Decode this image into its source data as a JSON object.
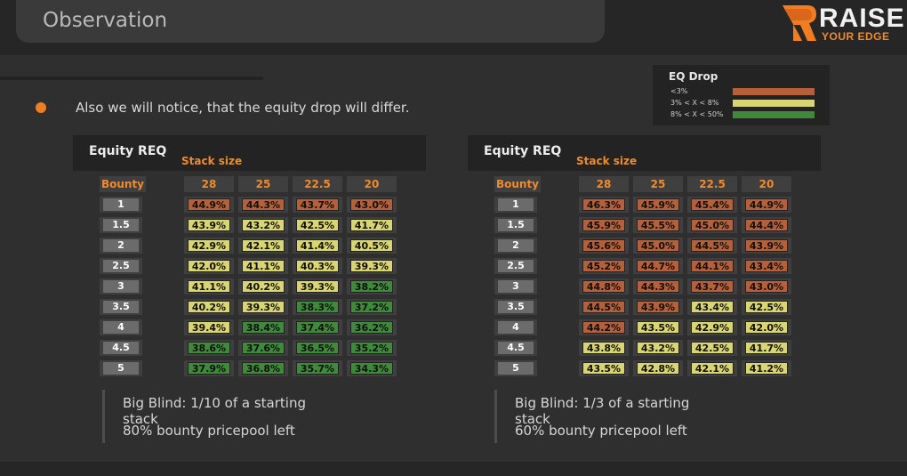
{
  "header": {
    "title": "Observation",
    "logo_main": "RAISE",
    "logo_sub": "YOUR EDGE"
  },
  "bullet_text": "Also we will notice, that the equity drop will differ.",
  "legend": {
    "title": "EQ Drop",
    "rows": [
      {
        "label": "<3%",
        "color": "#b5603a"
      },
      {
        "label": "3% < X < 8%",
        "color": "#d9d572"
      },
      {
        "label": "8% < X < 50%",
        "color": "#3e8a3a"
      }
    ]
  },
  "colors": {
    "red": "#b5603a",
    "yellow": "#d9d572",
    "green": "#3e8a3a",
    "accent": "#f08a2c"
  },
  "panels": [
    {
      "heading": "Equity REQ",
      "stack_label": "Stack size",
      "bounty_header": "Bounty",
      "stack_sizes": [
        "28",
        "25",
        "22.5",
        "20"
      ],
      "rows": [
        {
          "bounty": "1",
          "values": [
            "44.9%",
            "44.3%",
            "43.7%",
            "43.0%"
          ],
          "colors": [
            "r",
            "r",
            "r",
            "r"
          ]
        },
        {
          "bounty": "1.5",
          "values": [
            "43.9%",
            "43.2%",
            "42.5%",
            "41.7%"
          ],
          "colors": [
            "y",
            "y",
            "y",
            "y"
          ]
        },
        {
          "bounty": "2",
          "values": [
            "42.9%",
            "42.1%",
            "41.4%",
            "40.5%"
          ],
          "colors": [
            "y",
            "y",
            "y",
            "y"
          ]
        },
        {
          "bounty": "2.5",
          "values": [
            "42.0%",
            "41.1%",
            "40.3%",
            "39.3%"
          ],
          "colors": [
            "y",
            "y",
            "y",
            "y"
          ]
        },
        {
          "bounty": "3",
          "values": [
            "41.1%",
            "40.2%",
            "39.3%",
            "38.2%"
          ],
          "colors": [
            "y",
            "y",
            "y",
            "g"
          ]
        },
        {
          "bounty": "3.5",
          "values": [
            "40.2%",
            "39.3%",
            "38.3%",
            "37.2%"
          ],
          "colors": [
            "y",
            "y",
            "g",
            "g"
          ]
        },
        {
          "bounty": "4",
          "values": [
            "39.4%",
            "38.4%",
            "37.4%",
            "36.2%"
          ],
          "colors": [
            "y",
            "g",
            "g",
            "g"
          ]
        },
        {
          "bounty": "4.5",
          "values": [
            "38.6%",
            "37.6%",
            "36.5%",
            "35.2%"
          ],
          "colors": [
            "g",
            "g",
            "g",
            "g"
          ]
        },
        {
          "bounty": "5",
          "values": [
            "37.9%",
            "36.8%",
            "35.7%",
            "34.3%"
          ],
          "colors": [
            "g",
            "g",
            "g",
            "g"
          ]
        }
      ],
      "note_line1": "Big Blind: 1/10 of a starting stack",
      "note_line2": "80% bounty pricepool left"
    },
    {
      "heading": "Equity REQ",
      "stack_label": "Stack size",
      "bounty_header": "Bounty",
      "stack_sizes": [
        "28",
        "25",
        "22.5",
        "20"
      ],
      "rows": [
        {
          "bounty": "1",
          "values": [
            "46.3%",
            "45.9%",
            "45.4%",
            "44.9%"
          ],
          "colors": [
            "r",
            "r",
            "r",
            "r"
          ]
        },
        {
          "bounty": "1.5",
          "values": [
            "45.9%",
            "45.5%",
            "45.0%",
            "44.4%"
          ],
          "colors": [
            "r",
            "r",
            "r",
            "r"
          ]
        },
        {
          "bounty": "2",
          "values": [
            "45.6%",
            "45.0%",
            "44.5%",
            "43.9%"
          ],
          "colors": [
            "r",
            "r",
            "r",
            "r"
          ]
        },
        {
          "bounty": "2.5",
          "values": [
            "45.2%",
            "44.7%",
            "44.1%",
            "43.4%"
          ],
          "colors": [
            "r",
            "r",
            "r",
            "r"
          ]
        },
        {
          "bounty": "3",
          "values": [
            "44.8%",
            "44.3%",
            "43.7%",
            "43.0%"
          ],
          "colors": [
            "r",
            "r",
            "r",
            "r"
          ]
        },
        {
          "bounty": "3.5",
          "values": [
            "44.5%",
            "43.9%",
            "43.4%",
            "42.5%"
          ],
          "colors": [
            "r",
            "r",
            "y",
            "y"
          ]
        },
        {
          "bounty": "4",
          "values": [
            "44.2%",
            "43.5%",
            "42.9%",
            "42.0%"
          ],
          "colors": [
            "r",
            "y",
            "y",
            "y"
          ]
        },
        {
          "bounty": "4.5",
          "values": [
            "43.8%",
            "43.2%",
            "42.5%",
            "41.7%"
          ],
          "colors": [
            "y",
            "y",
            "y",
            "y"
          ]
        },
        {
          "bounty": "5",
          "values": [
            "43.5%",
            "42.8%",
            "42.1%",
            "41.2%"
          ],
          "colors": [
            "y",
            "y",
            "y",
            "y"
          ]
        }
      ],
      "note_line1": "Big Blind: 1/3 of a starting stack",
      "note_line2": "60% bounty pricepool left"
    }
  ]
}
